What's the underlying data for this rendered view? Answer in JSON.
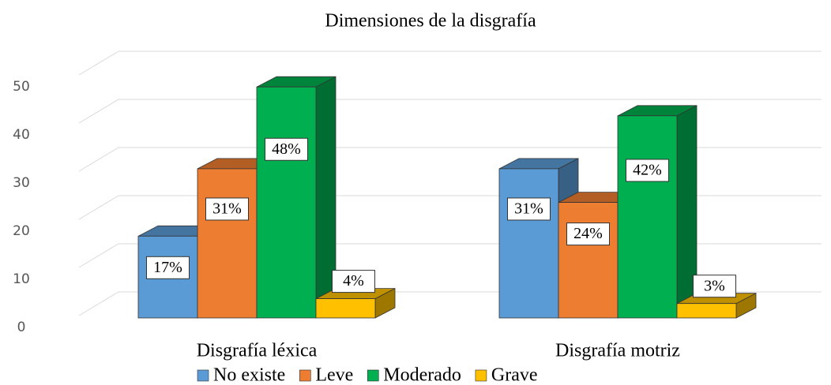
{
  "chart_data": {
    "type": "bar3d",
    "title": "Dimensiones de la disgrafía",
    "categories": [
      "Disgrafía léxica",
      "Disgrafía motriz"
    ],
    "series": [
      {
        "name": "No existe",
        "color": "#5b9bd5",
        "values": [
          17,
          31
        ],
        "value_labels": [
          "17%",
          "31%"
        ]
      },
      {
        "name": "Leve",
        "color": "#ed7d31",
        "values": [
          31,
          24
        ],
        "value_labels": [
          "31%",
          "24%"
        ]
      },
      {
        "name": "Moderado",
        "color": "#00b050",
        "values": [
          48,
          42
        ],
        "value_labels": [
          "48%",
          "42%"
        ]
      },
      {
        "name": "Grave",
        "color": "#ffc000",
        "values": [
          4,
          3
        ],
        "value_labels": [
          "4%",
          "3%"
        ]
      }
    ],
    "ylim": [
      0,
      50
    ],
    "yticks": [
      0,
      10,
      20,
      30,
      40,
      50
    ],
    "grid": true,
    "legend": "bottom"
  }
}
